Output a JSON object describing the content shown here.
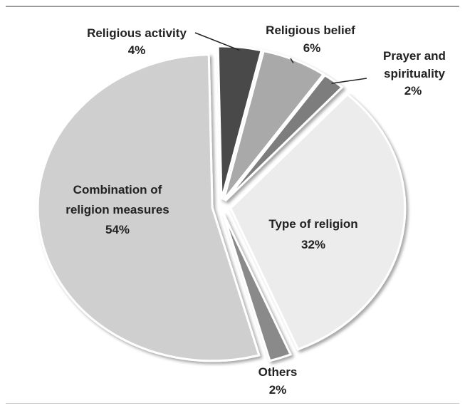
{
  "chart_data": {
    "type": "pie",
    "title": "",
    "slices": [
      {
        "label": "Religious activity",
        "value": 4,
        "percent_label": "4%",
        "color": "#4a4a4a"
      },
      {
        "label": "Religious belief",
        "value": 6,
        "percent_label": "6%",
        "color": "#a9a9a9"
      },
      {
        "label": "Prayer and spirituality",
        "value": 2,
        "percent_label": "2%",
        "color": "#7d7d7d"
      },
      {
        "label": "Type of religion",
        "value": 32,
        "percent_label": "32%",
        "color": "#ececec"
      },
      {
        "label": "Others",
        "value": 2,
        "percent_label": "2%",
        "color": "#8a8a8a"
      },
      {
        "label": "Combination of religion measures",
        "value": 54,
        "percent_label": "54%",
        "color": "#cfcfcf"
      }
    ],
    "legend": "none"
  }
}
